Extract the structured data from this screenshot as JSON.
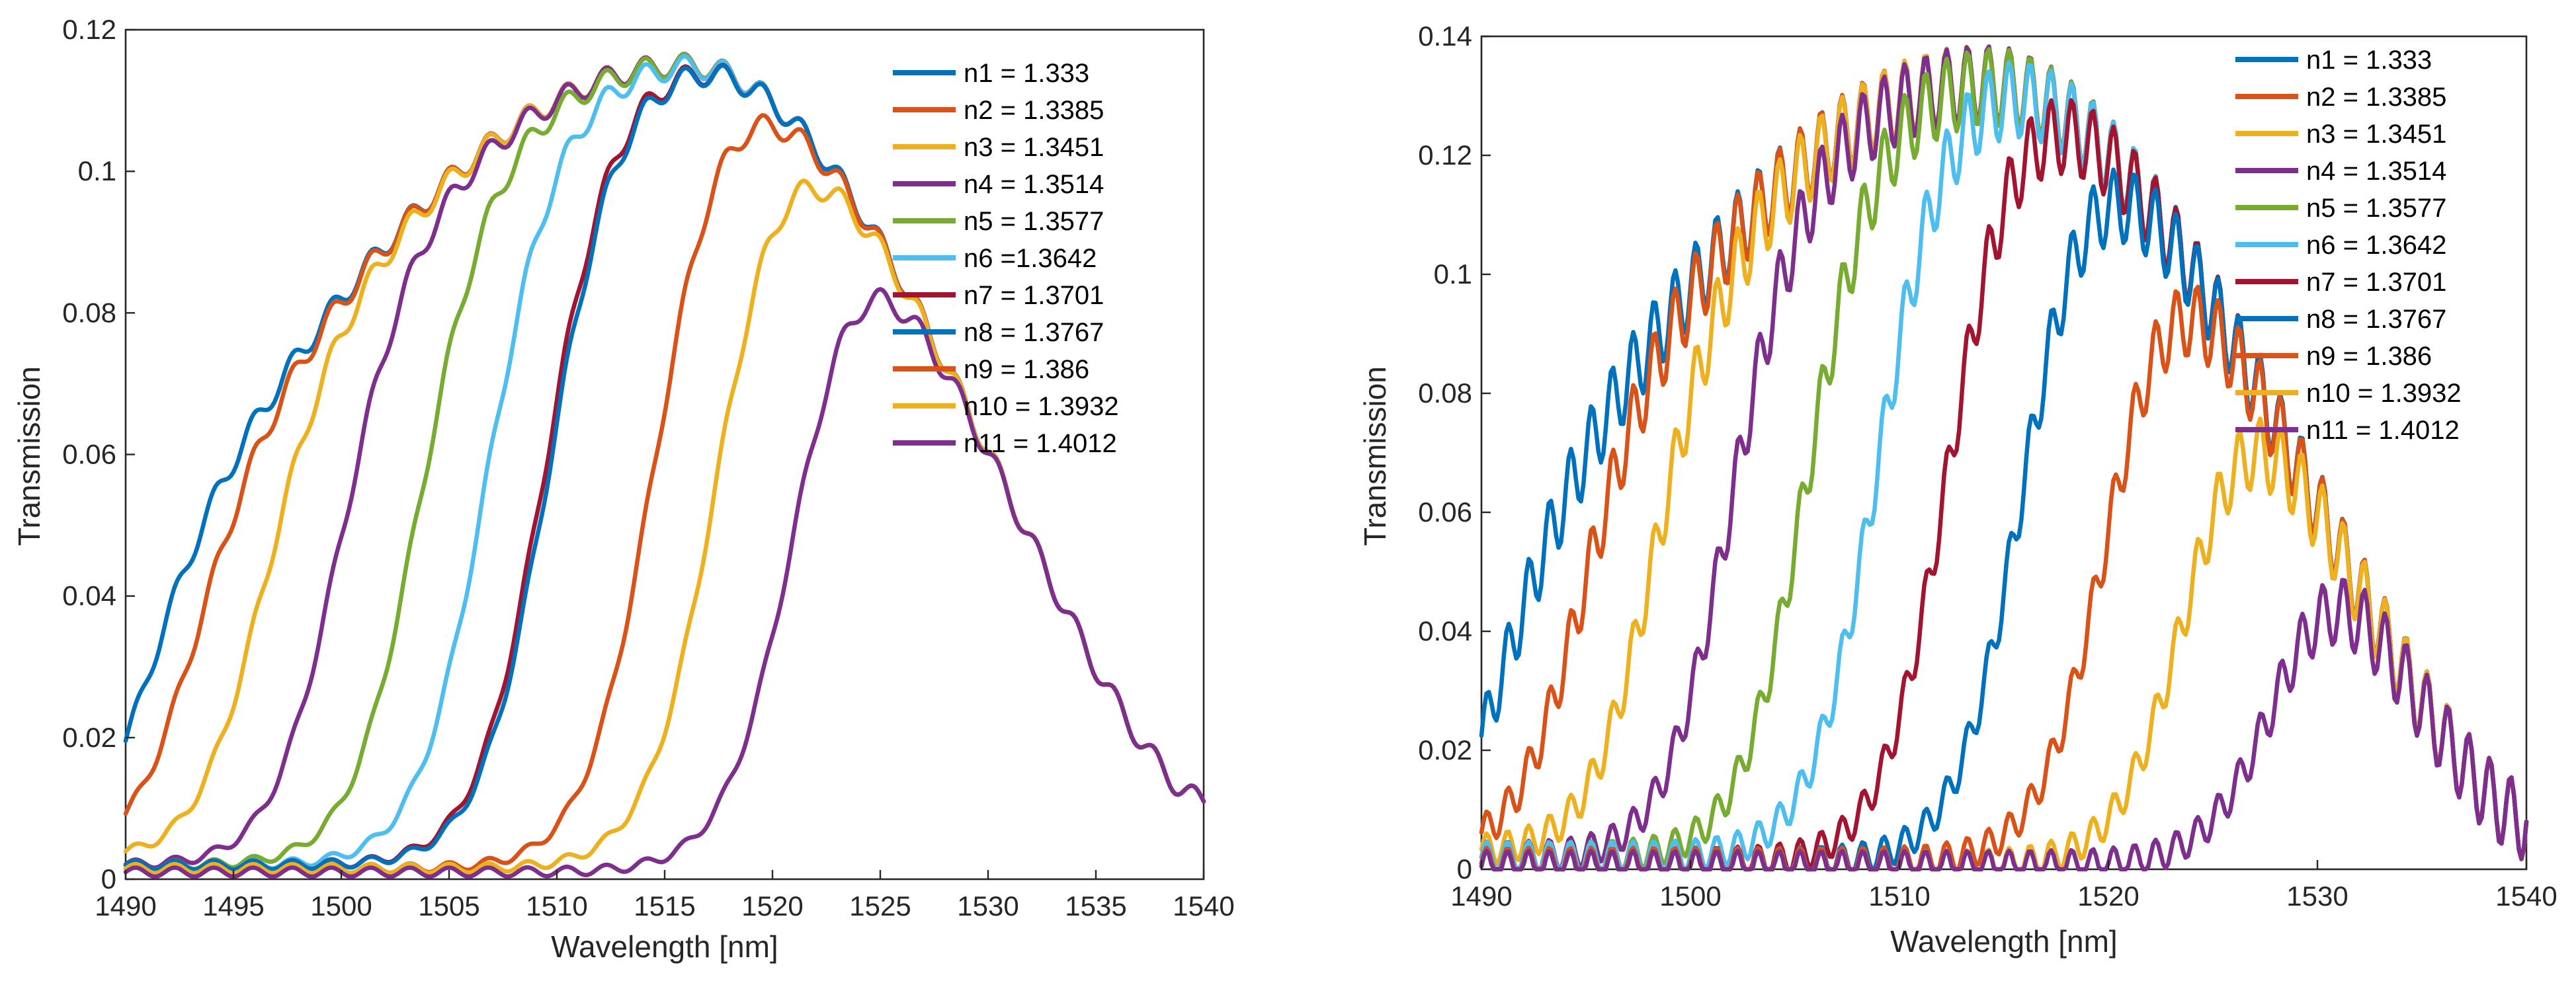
{
  "colors": [
    "#0072BD",
    "#D95319",
    "#EDB120",
    "#7E2F8E",
    "#77AC30",
    "#4DBEEE",
    "#A2142F",
    "#0072BD",
    "#D95319",
    "#EDB120",
    "#7E2F8E"
  ],
  "chart_data": [
    {
      "type": "line",
      "title": "",
      "xlabel": "Wavelength [nm]",
      "ylabel": "Transmission",
      "xlim": [
        1490,
        1540
      ],
      "ylim": [
        0,
        0.12
      ],
      "xticks": [
        1490,
        1495,
        1500,
        1505,
        1510,
        1515,
        1520,
        1525,
        1530,
        1535,
        1540
      ],
      "yticks": [
        0,
        0.02,
        0.04,
        0.06,
        0.08,
        0.1,
        0.12
      ],
      "yticklabels": [
        "0",
        "0.02",
        "0.04",
        "0.06",
        "0.08",
        "0.1",
        "0.12"
      ],
      "legend_position": "top-right",
      "series": [
        {
          "name": "n1 = 1.333",
          "midpoint": 1490,
          "floor": 0.0
        },
        {
          "name": "n2 = 1.3385",
          "midpoint": 1492.5,
          "floor": 0.003
        },
        {
          "name": "n3 = 1.3451",
          "midpoint": 1495.8,
          "floor": 0.003
        },
        {
          "name": "n4 = 1.3514",
          "midpoint": 1499.5,
          "floor": 0.002
        },
        {
          "name": "n5 = 1.3577",
          "midpoint": 1503.3,
          "floor": 0.002
        },
        {
          "name": "n6 =1.3642",
          "midpoint": 1506.5,
          "floor": 0.002
        },
        {
          "name": "n7 = 1.3701",
          "midpoint": 1509.3,
          "floor": 0.002
        },
        {
          "name": "n8 = 1.3767",
          "midpoint": 1509.5,
          "floor": 0.002
        },
        {
          "name": "n9 = 1.386",
          "midpoint": 1514.5,
          "floor": 0.0015
        },
        {
          "name": "n10 = 1.3932",
          "midpoint": 1517.5,
          "floor": 0.0015
        },
        {
          "name": "n11 = 1.4012",
          "midpoint": 1521.3,
          "floor": 0.001
        }
      ],
      "envelope": {
        "peak_wavelength": 1516,
        "peak_value": 0.115,
        "end_value": 0.011
      }
    },
    {
      "type": "line",
      "title": "",
      "xlabel": "Wavelength [nm]",
      "ylabel": "Transmission",
      "xlim": [
        1490,
        1540
      ],
      "ylim": [
        0,
        0.14
      ],
      "xticks": [
        1490,
        1500,
        1510,
        1520,
        1530,
        1540
      ],
      "yticks": [
        0,
        0.02,
        0.04,
        0.06,
        0.08,
        0.1,
        0.12,
        0.14
      ],
      "yticklabels": [
        "0",
        "0.02",
        "0.04",
        "0.06",
        "0.08",
        "0.1",
        "0.12",
        "0.14"
      ],
      "legend_position": "top-right",
      "series": [
        {
          "name": "n1 = 1.333",
          "midpoint": 1490,
          "floor": 0.0
        },
        {
          "name": "n2 = 1.3385",
          "midpoint": 1494,
          "floor": 0.003
        },
        {
          "name": "n3 = 1.3451",
          "midpoint": 1497.8,
          "floor": 0.003
        },
        {
          "name": "n4 = 1.3514",
          "midpoint": 1501.5,
          "floor": 0.002
        },
        {
          "name": "n5 = 1.3577",
          "midpoint": 1505.3,
          "floor": 0.002
        },
        {
          "name": "n6 = 1.3642",
          "midpoint": 1508.8,
          "floor": 0.002
        },
        {
          "name": "n7 = 1.3701",
          "midpoint": 1512.3,
          "floor": 0.001
        },
        {
          "name": "n8 = 1.3767",
          "midpoint": 1516,
          "floor": 0.001
        },
        {
          "name": "n9 = 1.386",
          "midpoint": 1520.2,
          "floor": 0.001
        },
        {
          "name": "n10 = 1.3932",
          "midpoint": 1524.2,
          "floor": 0.0005
        },
        {
          "name": "n11 = 1.4012",
          "midpoint": 1528.8,
          "floor": 0.0005
        }
      ],
      "envelope": {
        "peak_wavelength": 1514,
        "peak_value": 0.132,
        "end_value": 0.008
      }
    }
  ]
}
